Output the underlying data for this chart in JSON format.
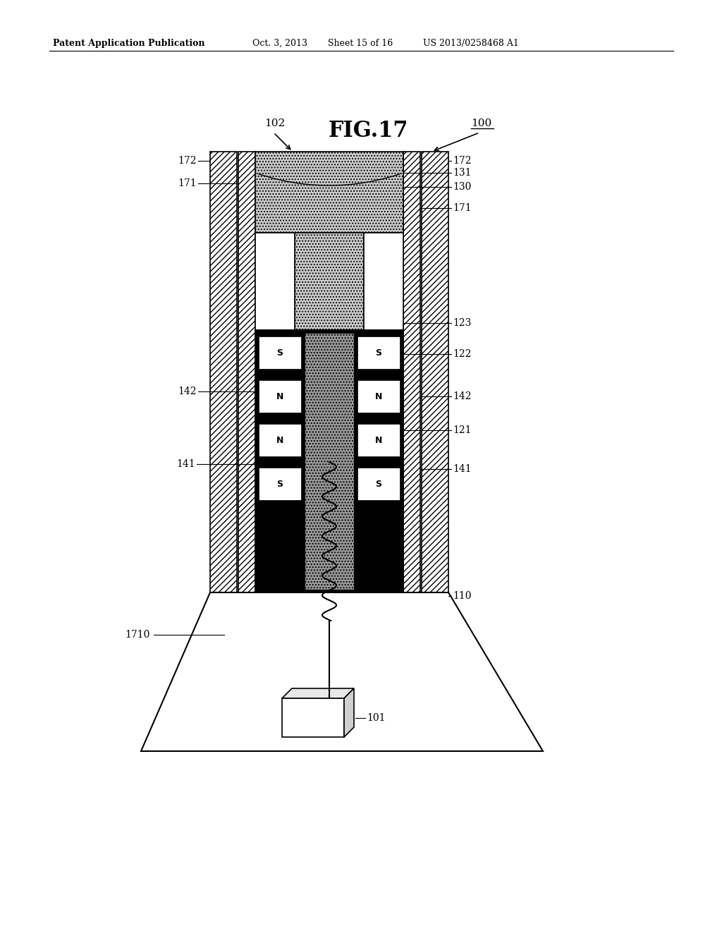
{
  "bg_color": "#ffffff",
  "header_text": "Patent Application Publication",
  "header_date": "Oct. 3, 2013",
  "header_sheet": "Sheet 15 of 16",
  "header_patent": "US 2013/0258468 A1",
  "fig_label": "FIG.17",
  "fig_num_label": "100",
  "fig_arrow_label": "102",
  "labels": {
    "172_left": "172",
    "172_right": "172",
    "171_left": "171",
    "171_right": "171",
    "131": "131",
    "130": "130",
    "123": "123",
    "122": "122",
    "142_left": "142",
    "142_right": "142",
    "121": "121",
    "141_left": "141",
    "141_right": "141",
    "110": "110",
    "1710": "1710",
    "101": "101"
  }
}
